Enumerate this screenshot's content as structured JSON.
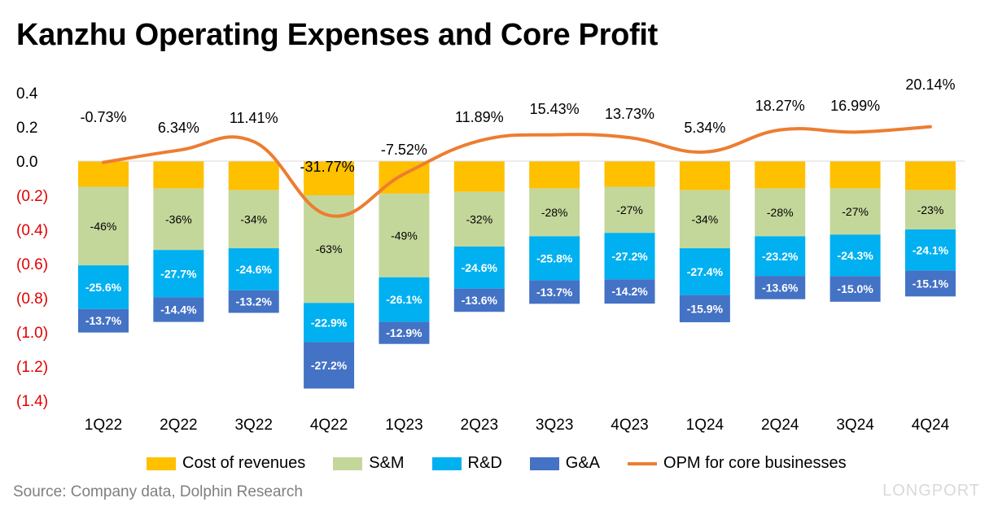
{
  "title": "Kanzhu Operating Expenses and Core Profit",
  "source": "Source: Company data, Dolphin Research",
  "brand": "LONGPORT",
  "colors": {
    "cost": "#FFC000",
    "sm": "#C4D79B",
    "rd": "#00B0F0",
    "ga": "#4472C4",
    "opm": "#ED7D31",
    "neg_tick": "#E00000"
  },
  "chart_data": {
    "type": "bar",
    "stacked": true,
    "title": "Kanzhu Operating Expenses and Core Profit",
    "categories": [
      "1Q22",
      "2Q22",
      "3Q22",
      "4Q22",
      "1Q23",
      "2Q23",
      "3Q23",
      "4Q23",
      "1Q24",
      "2Q24",
      "3Q24",
      "4Q24"
    ],
    "ylim": [
      -1.4,
      0.4
    ],
    "yticks": [
      0.4,
      0.2,
      0.0,
      -0.2,
      -0.4,
      -0.6,
      -0.8,
      -1.0,
      -1.2,
      -1.4
    ],
    "ytick_labels": [
      "0.4",
      "0.2",
      "0.0",
      "(0.2)",
      "(0.4)",
      "(0.6)",
      "(0.8)",
      "(1.0)",
      "(1.2)",
      "(1.4)"
    ],
    "series": [
      {
        "name": "Cost of revenues",
        "values": [
          -0.15,
          -0.16,
          -0.17,
          -0.2,
          -0.19,
          -0.18,
          -0.16,
          -0.15,
          -0.17,
          -0.16,
          -0.16,
          -0.17
        ]
      },
      {
        "name": "S&M",
        "values": [
          -0.46,
          -0.36,
          -0.34,
          -0.63,
          -0.49,
          -0.32,
          -0.28,
          -0.27,
          -0.34,
          -0.28,
          -0.27,
          -0.23
        ],
        "labels": [
          "-46%",
          "-36%",
          "-34%",
          "-63%",
          "-49%",
          "-32%",
          "-28%",
          "-27%",
          "-34%",
          "-28%",
          "-27%",
          "-23%"
        ]
      },
      {
        "name": "R&D",
        "values": [
          -0.256,
          -0.277,
          -0.246,
          -0.229,
          -0.261,
          -0.246,
          -0.258,
          -0.272,
          -0.274,
          -0.232,
          -0.243,
          -0.241
        ],
        "labels": [
          "-25.6%",
          "-27.7%",
          "-24.6%",
          "-22.9%",
          "-26.1%",
          "-24.6%",
          "-25.8%",
          "-27.2%",
          "-27.4%",
          "-23.2%",
          "-24.3%",
          "-24.1%"
        ]
      },
      {
        "name": "G&A",
        "values": [
          -0.137,
          -0.144,
          -0.132,
          -0.272,
          -0.129,
          -0.136,
          -0.137,
          -0.142,
          -0.159,
          -0.136,
          -0.15,
          -0.151
        ],
        "labels": [
          "-13.7%",
          "-14.4%",
          "-13.2%",
          "-27.2%",
          "-12.9%",
          "-13.6%",
          "-13.7%",
          "-14.2%",
          "-15.9%",
          "-13.6%",
          "-15.0%",
          "-15.1%"
        ]
      }
    ],
    "line": {
      "name": "OPM for core businesses",
      "values": [
        -0.0073,
        0.0634,
        0.1141,
        -0.3177,
        -0.0752,
        0.1189,
        0.1543,
        0.1373,
        0.0534,
        0.1827,
        0.1699,
        0.2014
      ],
      "labels": [
        "-0.73%",
        "6.34%",
        "11.41%",
        "-31.77%",
        "-7.52%",
        "11.89%",
        "15.43%",
        "13.73%",
        "5.34%",
        "18.27%",
        "16.99%",
        "20.14%"
      ]
    },
    "legend": [
      "Cost of revenues",
      "S&M",
      "R&D",
      "G&A",
      "OPM for core businesses"
    ],
    "legend_position": "bottom"
  }
}
